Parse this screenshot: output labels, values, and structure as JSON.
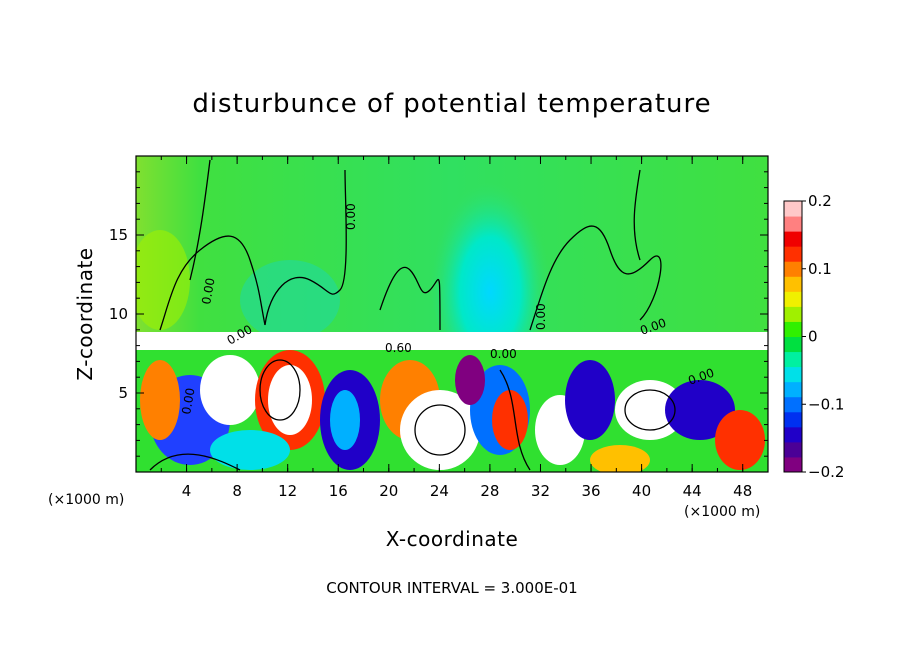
{
  "chart_data": {
    "type": "heatmap",
    "title": "disturbunce of potential temperature",
    "xlabel": "X-coordinate",
    "ylabel": "Z-coordinate",
    "x_unit": "(×1000 m)",
    "x_unit_right": "(×1000 m)",
    "xlim": [
      0,
      50
    ],
    "ylim": [
      0,
      20
    ],
    "x_ticks": [
      4,
      8,
      12,
      16,
      20,
      24,
      28,
      32,
      36,
      40,
      44,
      48
    ],
    "y_ticks": [
      5,
      10,
      15
    ],
    "colorbar": {
      "range": [
        -0.2,
        0.2
      ],
      "tick_values": [
        0.2,
        0.1,
        0,
        -0.1,
        -0.2
      ],
      "tick_labels": [
        "0.2",
        "0.1",
        "0",
        "−0.1",
        "−0.2"
      ],
      "colors": [
        "#800080",
        "#4b0096",
        "#2000c8",
        "#0030f0",
        "#0070ff",
        "#00b0ff",
        "#00e0e8",
        "#00f0a0",
        "#00e040",
        "#30f000",
        "#a0f000",
        "#f0f000",
        "#ffc000",
        "#ff8000",
        "#ff3000",
        "#f00000",
        "#ff8080",
        "#ffc8c8"
      ]
    },
    "contour_labels": [
      "0.00",
      "0.00",
      "0.00",
      "0.60",
      "0.00",
      "0.00",
      "0.00",
      "0.00",
      "0.00"
    ],
    "contour_interval_text": "CONTOUR INTERVAL = 3.000E-01",
    "grid": false
  }
}
